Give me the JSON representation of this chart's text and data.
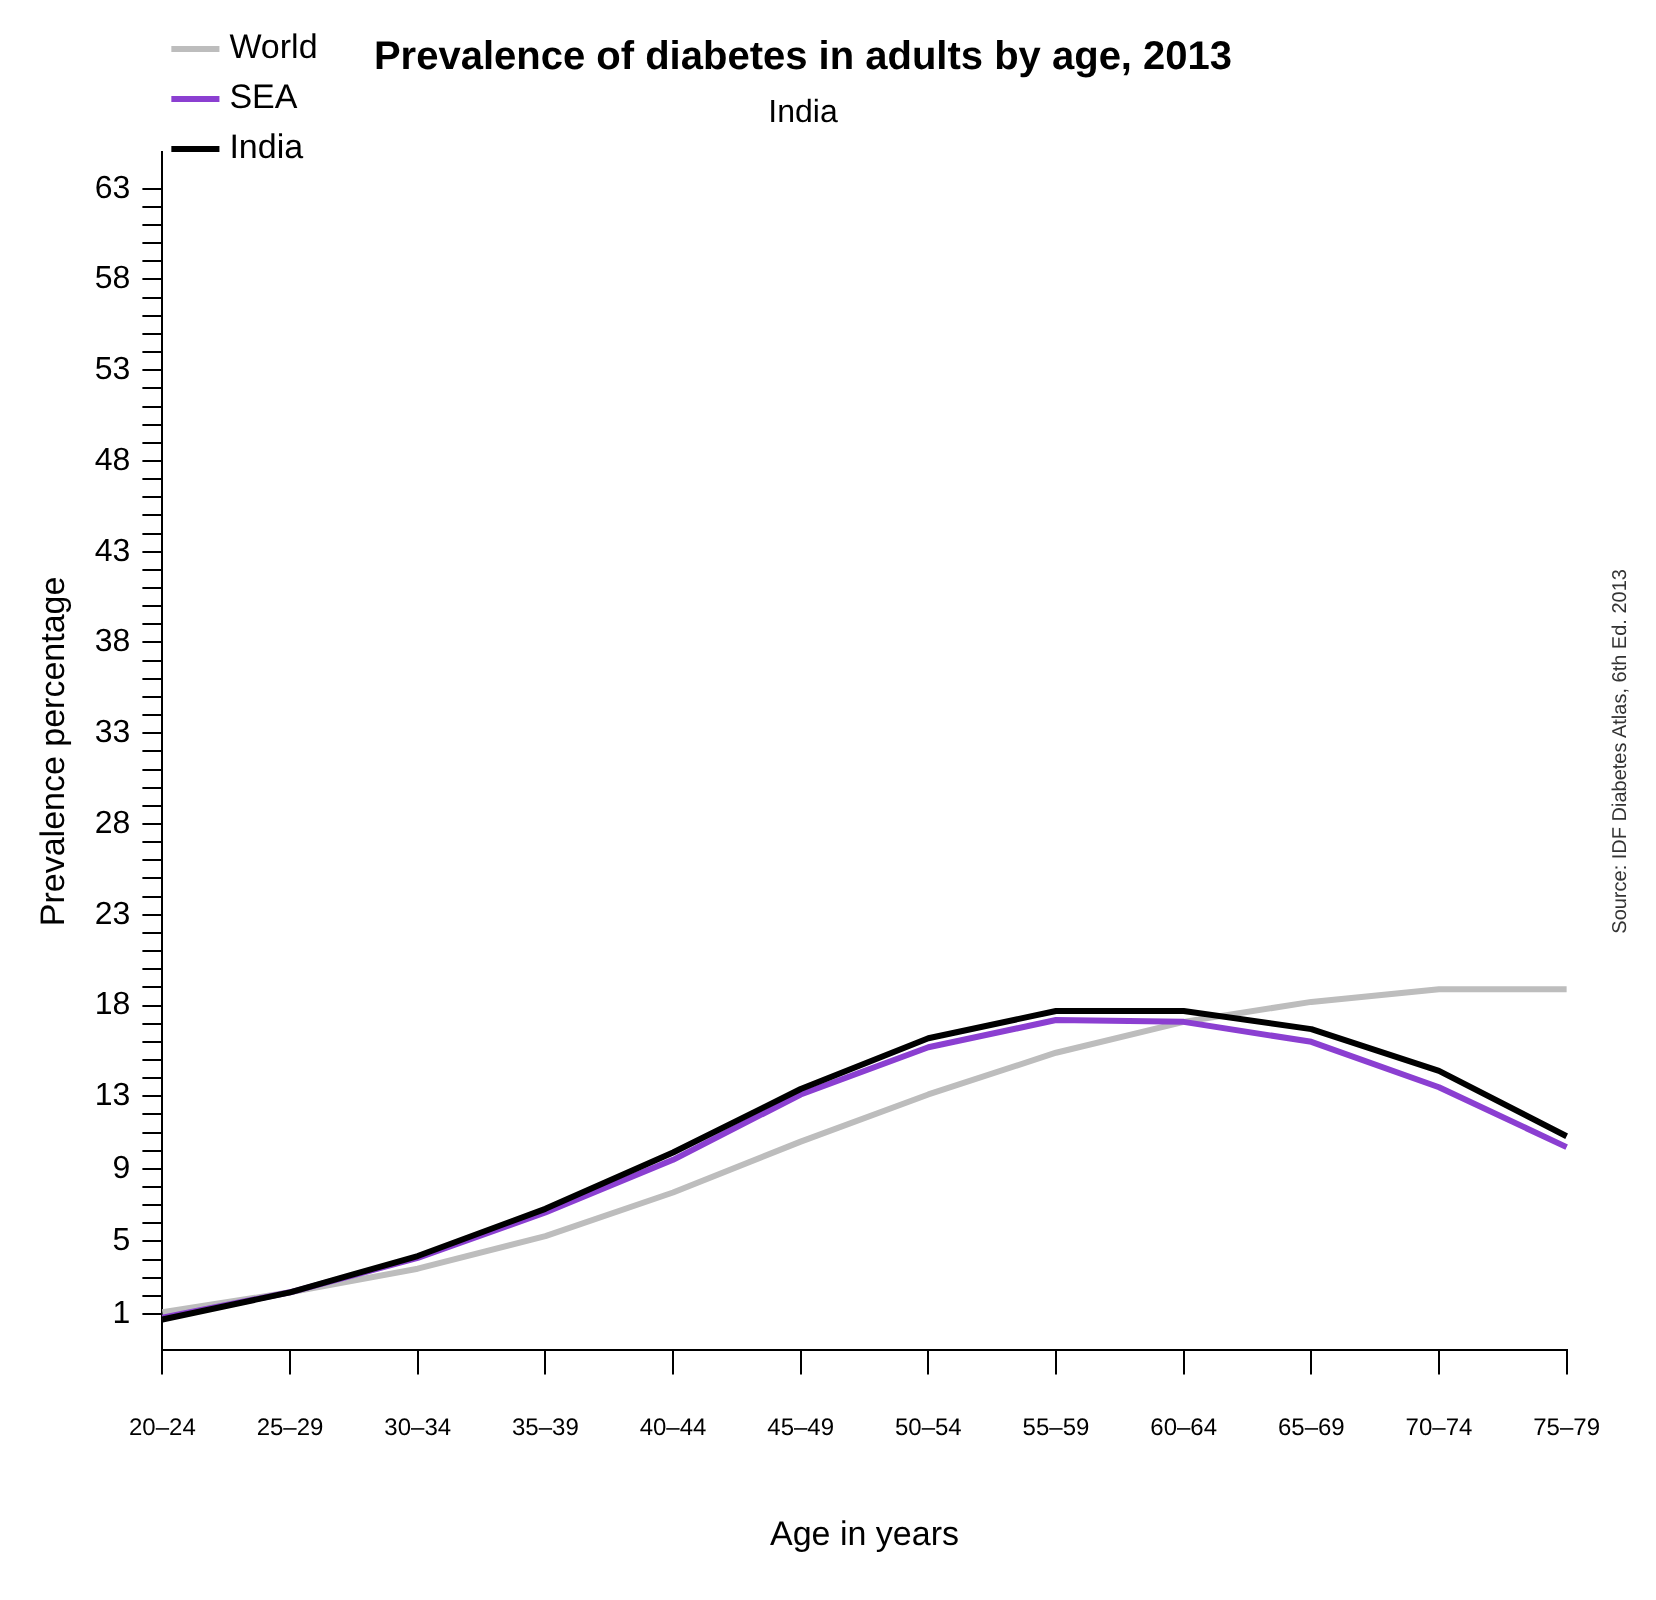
{
  "chart_data": {
    "type": "line",
    "title": "Prevalence of diabetes in adults by age, 2013",
    "subtitle": "India",
    "xlabel": "Age in years",
    "ylabel": "Prevalence percentage",
    "annotations": [
      "Source: IDF Diabetes Atlas, 6th Ed. 2013"
    ],
    "categories": [
      "20–24",
      "25–29",
      "30–34",
      "35–39",
      "40–44",
      "45–49",
      "50–54",
      "55–59",
      "60–64",
      "65–69",
      "70–74",
      "75–79"
    ],
    "series": [
      {
        "name": "World",
        "color": "#bdbdbd",
        "values": [
          1.1,
          2.2,
          3.5,
          5.3,
          7.7,
          10.5,
          13.1,
          15.4,
          17.1,
          18.2,
          18.9,
          18.9
        ]
      },
      {
        "name": "SEA",
        "color": "#8b3fd1",
        "values": [
          0.8,
          2.2,
          4.1,
          6.6,
          9.5,
          13.1,
          15.7,
          17.2,
          17.1,
          16.0,
          13.5,
          10.2
        ]
      },
      {
        "name": "India",
        "color": "#000000",
        "values": [
          0.7,
          2.2,
          4.2,
          6.8,
          9.9,
          13.4,
          16.2,
          17.7,
          17.7,
          16.7,
          14.4,
          10.8
        ]
      }
    ],
    "ylim": [
      -1,
      65
    ],
    "yticks": [
      1,
      {
        "value": 2,
        "label": null
      },
      {
        "value": 3,
        "label": null
      },
      {
        "value": 4,
        "label": null
      },
      5,
      {
        "value": 6,
        "label": null
      },
      {
        "value": 7,
        "label": null
      },
      {
        "value": 8,
        "label": null
      },
      9,
      {
        "value": 10,
        "label": null
      },
      {
        "value": 11,
        "label": null
      },
      {
        "value": 12,
        "label": null
      },
      13,
      {
        "value": 14,
        "label": null
      },
      {
        "value": 15,
        "label": null
      },
      {
        "value": 16,
        "label": null
      },
      {
        "value": 17,
        "label": null
      },
      18,
      {
        "value": 19,
        "label": null
      },
      {
        "value": 20,
        "label": null
      },
      {
        "value": 21,
        "label": null
      },
      {
        "value": 22,
        "label": null
      },
      23,
      {
        "value": 24,
        "label": null
      },
      {
        "value": 25,
        "label": null
      },
      {
        "value": 26,
        "label": null
      },
      {
        "value": 27,
        "label": null
      },
      28,
      {
        "value": 29,
        "label": null
      },
      {
        "value": 30,
        "label": null
      },
      {
        "value": 31,
        "label": null
      },
      {
        "value": 32,
        "label": null
      },
      33,
      {
        "value": 34,
        "label": null
      },
      {
        "value": 35,
        "label": null
      },
      {
        "value": 36,
        "label": null
      },
      {
        "value": 37,
        "label": null
      },
      38,
      {
        "value": 39,
        "label": null
      },
      {
        "value": 40,
        "label": null
      },
      {
        "value": 41,
        "label": null
      },
      {
        "value": 42,
        "label": null
      },
      43,
      {
        "value": 44,
        "label": null
      },
      {
        "value": 45,
        "label": null
      },
      {
        "value": 46,
        "label": null
      },
      {
        "value": 47,
        "label": null
      },
      48,
      {
        "value": 49,
        "label": null
      },
      {
        "value": 50,
        "label": null
      },
      {
        "value": 51,
        "label": null
      },
      {
        "value": 52,
        "label": null
      },
      53,
      {
        "value": 54,
        "label": null
      },
      {
        "value": 55,
        "label": null
      },
      {
        "value": 56,
        "label": null
      },
      {
        "value": 57,
        "label": null
      },
      58,
      {
        "value": 59,
        "label": null
      },
      {
        "value": 60,
        "label": null
      },
      {
        "value": 61,
        "label": null
      },
      {
        "value": 62,
        "label": null
      },
      63
    ],
    "grid": false,
    "legend": "top left",
    "marker": "none",
    "line_style": "solid"
  }
}
